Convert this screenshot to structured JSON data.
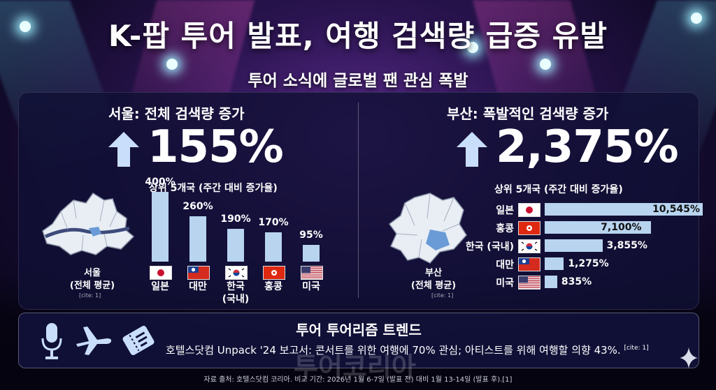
{
  "title": "K-팝 투어 발표, 여행 검색량 급증 유발",
  "subtitle": "투어 소식에 글로벌 팬 관심 폭발",
  "seoul": {
    "heading": "서울: 전체 검색량 증가",
    "increase": "155%",
    "chart_title": "상위 5개국 (주간 대비 증가율)",
    "map_label_line1": "서울",
    "map_label_line2": "(전체 평균)",
    "cite": "[cite: 1]"
  },
  "busan": {
    "heading": "부산: 폭발적인 검색량 증가",
    "increase": "2,375%",
    "chart_title": "상위 5개국 (주간 대비 증가율)",
    "map_label_line1": "부산",
    "map_label_line2": "(전체 평균)",
    "cite": "[cite: 1]"
  },
  "chart_data": [
    {
      "type": "bar",
      "orientation": "vertical",
      "title": "상위 5개국 (주간 대비 증가율)",
      "categories": [
        "일본",
        "대만",
        "한국 (국내)",
        "홍콩",
        "미국"
      ],
      "category_lines": [
        [
          "일본"
        ],
        [
          "대만"
        ],
        [
          "한국",
          "(국내)"
        ],
        [
          "홍콩"
        ],
        [
          "미국"
        ]
      ],
      "values": [
        400,
        260,
        190,
        170,
        95
      ],
      "value_labels": [
        "400%",
        "260%",
        "190%",
        "170%",
        "95%"
      ],
      "flags": [
        "jp",
        "tw",
        "kr",
        "hk",
        "us"
      ],
      "color": "#b8d4ef"
    },
    {
      "type": "bar",
      "orientation": "horizontal",
      "title": "상위 5개국 (주간 대비 증가율)",
      "categories": [
        "일본",
        "홍콩",
        "한국 (국내)",
        "대만",
        "미국"
      ],
      "values": [
        10545,
        7100,
        3855,
        1275,
        835
      ],
      "value_labels": [
        "10,545%",
        "7,100%",
        "3,855%",
        "1,275%",
        "835%"
      ],
      "flags": [
        "jp",
        "hk",
        "kr",
        "tw",
        "us"
      ],
      "color": "#b8d4ef"
    }
  ],
  "trend": {
    "title": "투어 투어리즘 트렌드",
    "text": "호텔스닷컴 Unpack '24 보고서: 콘서트를 위한 여행에 70% 관심; 아티스트를 위해 여행할 의향 43%.",
    "cite": "[cite: 1]",
    "icons": [
      "microphone-icon",
      "airplane-icon",
      "ticket-icon"
    ]
  },
  "watermark": "투어코리아",
  "source": "자료 출처: 호텔스닷컴 코리아. 비교 기간: 2026년 1월 6-7일 (발표 전) 대비 1월 13-14일 (발표 후).[1]",
  "colors": {
    "bar": "#b8d4ef",
    "panel": "#10103a",
    "arrow": "#c9defa"
  }
}
